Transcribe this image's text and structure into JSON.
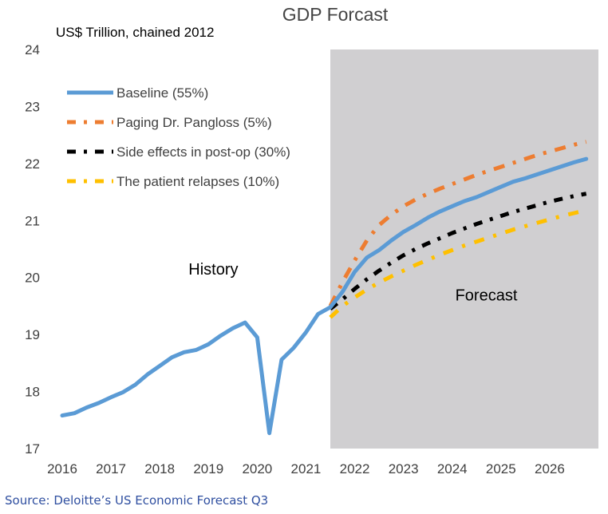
{
  "source": "Source: Deloitte’s US Economic Forecast Q3",
  "chart_data": {
    "type": "line",
    "title": "GDP Forcast",
    "ylabel": "US$ Trillion, chained 2012",
    "xlabel": "",
    "ylim": [
      17,
      24
    ],
    "yticks": [
      17,
      18,
      19,
      20,
      21,
      22,
      23,
      24
    ],
    "xlim": [
      2016,
      2027
    ],
    "xticks": [
      2016,
      2017,
      2018,
      2019,
      2020,
      2021,
      2022,
      2023,
      2024,
      2025,
      2026
    ],
    "grid": false,
    "legend_position": "top-left",
    "forecast_start": 2021.5,
    "shade_color": "#d0cfd1",
    "annotations": [
      {
        "text": "History",
        "x": 2019.1,
        "y": 20.05
      },
      {
        "text": "Forecast",
        "x": 2024.7,
        "y": 19.6
      }
    ],
    "series": [
      {
        "name": "Baseline (55%)",
        "color": "#5b9bd5",
        "style": "solid",
        "x": [
          2016,
          2016.25,
          2016.5,
          2016.75,
          2017,
          2017.25,
          2017.5,
          2017.75,
          2018,
          2018.25,
          2018.5,
          2018.75,
          2019,
          2019.25,
          2019.5,
          2019.75,
          2020,
          2020.25,
          2020.5,
          2020.75,
          2021,
          2021.25,
          2021.5,
          2021.75,
          2022,
          2022.25,
          2022.5,
          2022.75,
          2023,
          2023.25,
          2023.5,
          2023.75,
          2024,
          2024.25,
          2024.5,
          2024.75,
          2025,
          2025.25,
          2025.5,
          2025.75,
          2026,
          2026.25,
          2026.5,
          2026.75
        ],
        "values": [
          17.58,
          17.62,
          17.72,
          17.8,
          17.9,
          17.99,
          18.12,
          18.3,
          18.45,
          18.6,
          18.69,
          18.73,
          18.83,
          18.98,
          19.11,
          19.21,
          18.95,
          17.27,
          18.56,
          18.77,
          19.04,
          19.36,
          19.48,
          19.75,
          20.1,
          20.35,
          20.48,
          20.65,
          20.8,
          20.92,
          21.05,
          21.16,
          21.25,
          21.34,
          21.41,
          21.5,
          21.59,
          21.68,
          21.74,
          21.81,
          21.88,
          21.95,
          22.02,
          22.08
        ]
      },
      {
        "name": "Paging Dr. Pangloss (5%)",
        "color": "#ed7d31",
        "style": "dash-dot",
        "x": [
          2021.5,
          2021.75,
          2022,
          2022.25,
          2022.5,
          2022.75,
          2023,
          2023.25,
          2023.5,
          2023.75,
          2024,
          2024.25,
          2024.5,
          2024.75,
          2025,
          2025.25,
          2025.5,
          2025.75,
          2026,
          2026.25,
          2026.5,
          2026.75
        ],
        "values": [
          19.5,
          19.92,
          20.3,
          20.65,
          20.92,
          21.1,
          21.25,
          21.37,
          21.47,
          21.56,
          21.64,
          21.72,
          21.8,
          21.87,
          21.94,
          22.01,
          22.08,
          22.15,
          22.21,
          22.27,
          22.33,
          22.38
        ]
      },
      {
        "name": "Side effects in post-op (30%)",
        "color": "#000000",
        "style": "dash-dot",
        "x": [
          2021.5,
          2021.75,
          2022,
          2022.25,
          2022.5,
          2022.75,
          2023,
          2023.25,
          2023.5,
          2023.75,
          2024,
          2024.25,
          2024.5,
          2024.75,
          2025,
          2025.25,
          2025.5,
          2025.75,
          2026,
          2026.25,
          2026.5,
          2026.75
        ],
        "values": [
          19.45,
          19.62,
          19.8,
          19.97,
          20.12,
          20.26,
          20.39,
          20.5,
          20.6,
          20.69,
          20.78,
          20.86,
          20.94,
          21.01,
          21.08,
          21.15,
          21.21,
          21.27,
          21.33,
          21.38,
          21.43,
          21.47
        ]
      },
      {
        "name": "The patient relapses (10%)",
        "color": "#ffc000",
        "style": "dash-dot",
        "x": [
          2021.5,
          2021.75,
          2022,
          2022.25,
          2022.5,
          2022.75,
          2023,
          2023.25,
          2023.5,
          2023.75,
          2024,
          2024.25,
          2024.5,
          2024.75,
          2025,
          2025.25,
          2025.5,
          2025.75,
          2026,
          2026.25,
          2026.5,
          2026.75
        ],
        "values": [
          19.3,
          19.5,
          19.65,
          19.79,
          19.91,
          20.02,
          20.12,
          20.22,
          20.31,
          20.4,
          20.48,
          20.56,
          20.63,
          20.7,
          20.77,
          20.84,
          20.9,
          20.96,
          21.02,
          21.08,
          21.13,
          21.18
        ]
      }
    ]
  }
}
